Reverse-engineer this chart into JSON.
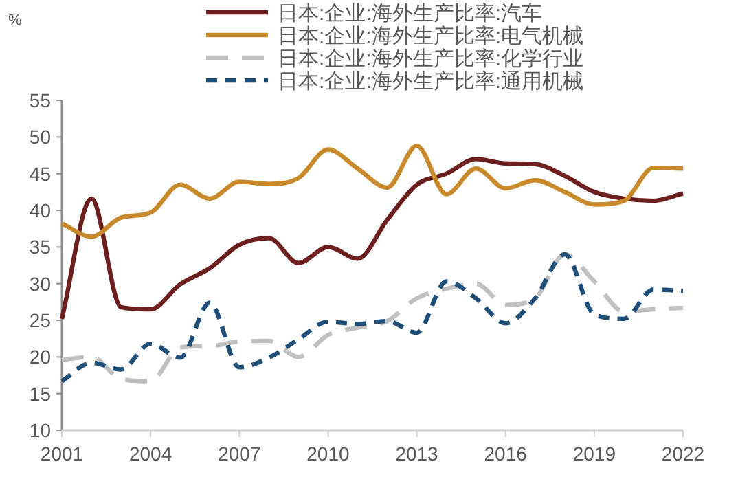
{
  "chart_data": {
    "type": "line",
    "ylabel": "%",
    "legend": "top",
    "x": [
      2001,
      2002,
      2003,
      2004,
      2005,
      2006,
      2007,
      2008,
      2009,
      2010,
      2011,
      2012,
      2013,
      2014,
      2015,
      2016,
      2017,
      2018,
      2019,
      2020,
      2021,
      2022
    ],
    "xlim": [
      2001,
      2022
    ],
    "xticks": [
      2001,
      2004,
      2007,
      2010,
      2013,
      2016,
      2019,
      2022
    ],
    "ylim": [
      10,
      55
    ],
    "yticks": [
      10,
      15,
      20,
      25,
      30,
      35,
      40,
      45,
      50,
      55
    ],
    "series": [
      {
        "name": "日本:企业:海外生产比率:汽车",
        "color": "#6b1f1f",
        "line_style": "solid",
        "values": [
          25.2,
          41.6,
          26.8,
          26.5,
          29.9,
          32.1,
          35.3,
          36.2,
          32.8,
          35,
          33.4,
          38.7,
          43.5,
          45,
          47,
          46.4,
          46.3,
          44.7,
          42.5,
          41.6,
          41.3,
          42.3
        ]
      },
      {
        "name": "日本:企业:海外生产比率:电气机械",
        "color": "#c8892b",
        "line_style": "solid",
        "values": [
          38.2,
          36.4,
          39,
          39.7,
          43.5,
          41.6,
          43.9,
          43.6,
          44.4,
          48.3,
          45.7,
          43.1,
          48.8,
          42.2,
          45.7,
          43,
          44.1,
          42.5,
          40.8,
          41.3,
          45.8,
          45.7
        ]
      },
      {
        "name": "日本:企业:海外生产比率:化学行业",
        "color": "#c0c0c0",
        "line_style": "dashed",
        "values": [
          19.6,
          20,
          17,
          16.7,
          21.3,
          21.5,
          22.1,
          22.2,
          20,
          23,
          24,
          24.9,
          28,
          29.3,
          30,
          27.1,
          28,
          34,
          30.3,
          26.2,
          26.5,
          26.7
        ]
      },
      {
        "name": "日本:企业:海外生产比率:通用机械",
        "color": "#1f4e79",
        "line_style": "dotted",
        "values": [
          16.7,
          19.2,
          18.3,
          21.8,
          19.9,
          27.4,
          18.6,
          19.9,
          22.4,
          24.8,
          24.5,
          24.9,
          23.3,
          30.3,
          28,
          24.6,
          28,
          34,
          25.8,
          25.2,
          29.2,
          29
        ]
      }
    ]
  }
}
